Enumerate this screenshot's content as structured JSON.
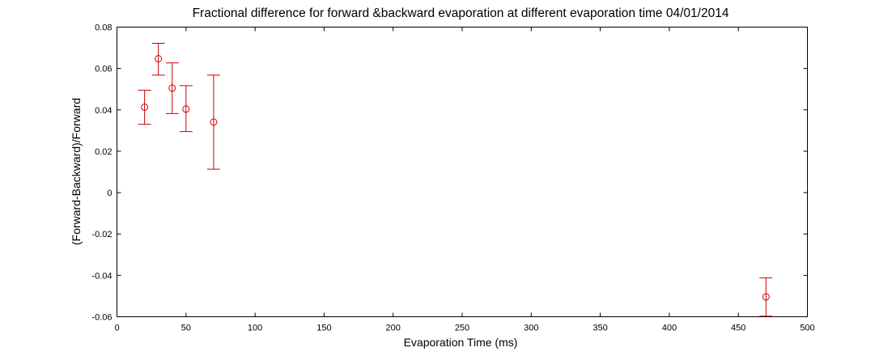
{
  "chart_data": {
    "type": "scatter",
    "title": "Fractional difference for forward &backward evaporation at different evaporation time   04/01/2014",
    "xlabel": "Evaporation Time (ms)",
    "ylabel": "(Forward-Backward)/Forward",
    "xlim": [
      0,
      500
    ],
    "ylim": [
      -0.06,
      0.08
    ],
    "xticks": [
      0,
      50,
      100,
      150,
      200,
      250,
      300,
      350,
      400,
      450,
      500
    ],
    "yticks": [
      -0.06,
      -0.04,
      -0.02,
      0,
      0.02,
      0.04,
      0.06,
      0.08
    ],
    "xtick_labels": [
      "0",
      "50",
      "100",
      "150",
      "200",
      "250",
      "300",
      "350",
      "400",
      "450",
      "500"
    ],
    "ytick_labels": [
      "-0.06",
      "-0.04",
      "-0.02",
      "0",
      "0.02",
      "0.04",
      "0.06",
      "0.08"
    ],
    "grid": false,
    "marker": "circle",
    "color": "#cc0000",
    "points": [
      {
        "x": 20,
        "y": 0.0413,
        "err_low": 0.033,
        "err_high": 0.0495
      },
      {
        "x": 30,
        "y": 0.0647,
        "err_low": 0.0568,
        "err_high": 0.0722
      },
      {
        "x": 40,
        "y": 0.0505,
        "err_low": 0.0382,
        "err_high": 0.0627
      },
      {
        "x": 50,
        "y": 0.0404,
        "err_low": 0.0295,
        "err_high": 0.0517
      },
      {
        "x": 70,
        "y": 0.0341,
        "err_low": 0.0113,
        "err_high": 0.0568
      },
      {
        "x": 470,
        "y": -0.0504,
        "err_low": -0.0597,
        "err_high": -0.0412
      }
    ]
  }
}
